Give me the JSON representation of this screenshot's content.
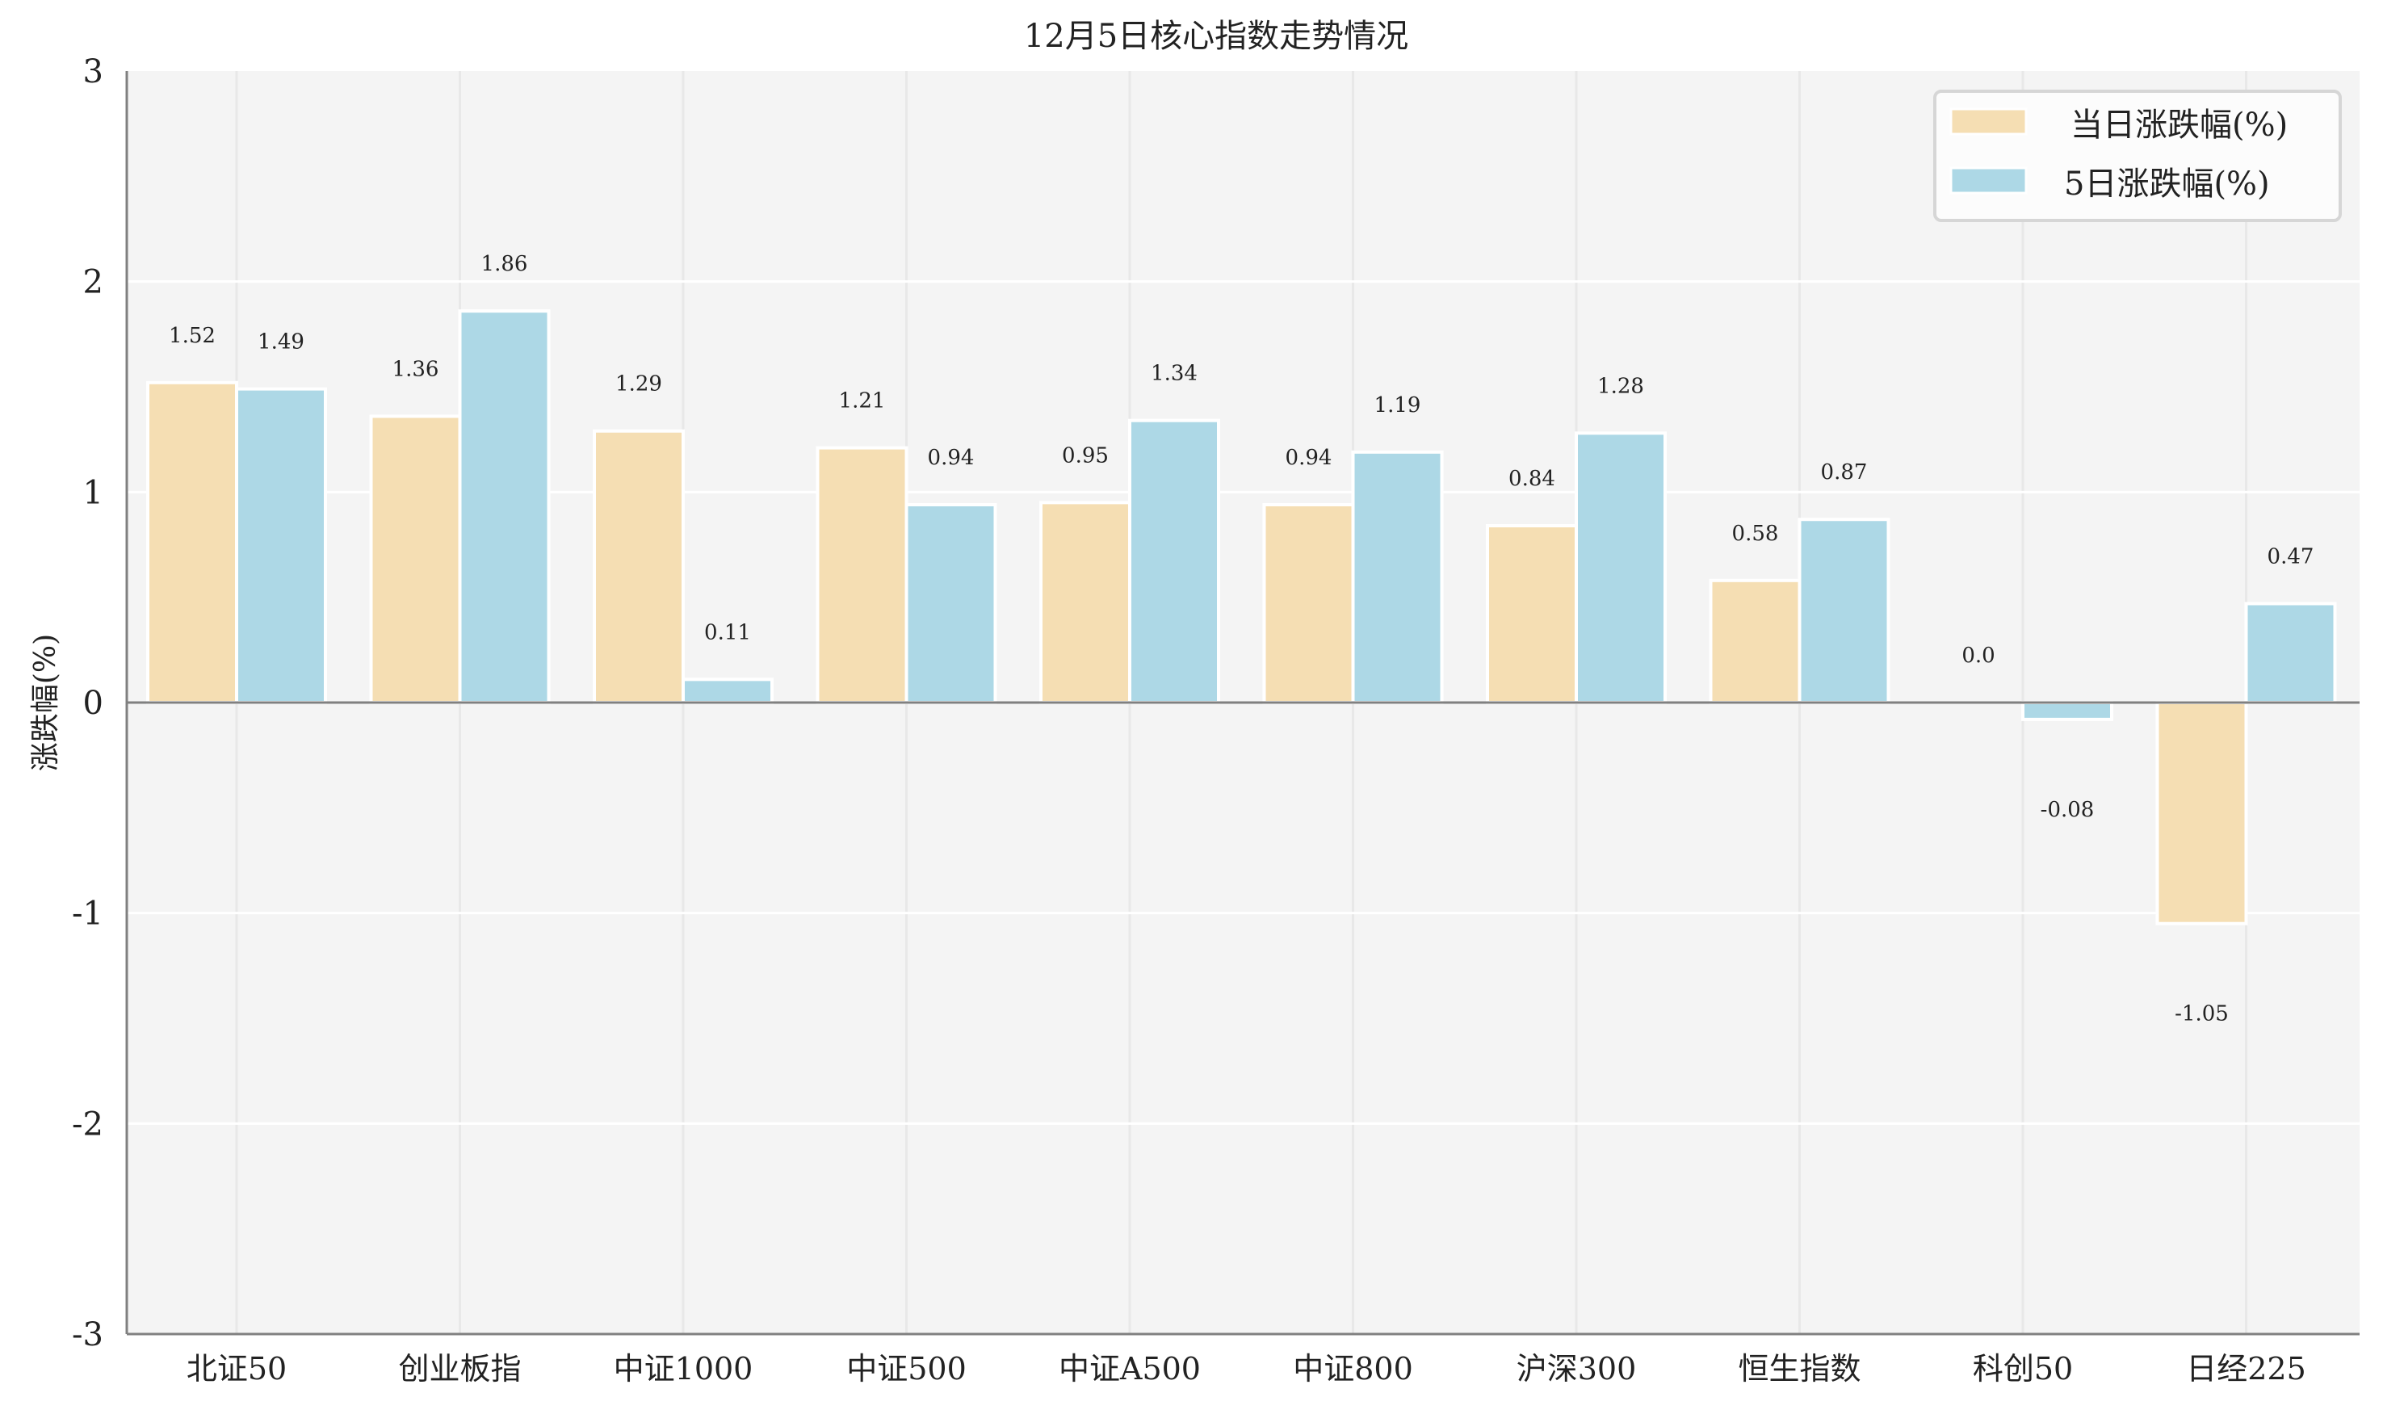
{
  "chart_data": {
    "type": "bar",
    "title": "12月5日核心指数走势情况",
    "xlabel": "",
    "ylabel": "涨跌幅(%)",
    "ylim": [
      -3,
      3
    ],
    "yticks": [
      3,
      2,
      1,
      0,
      -1,
      -2,
      -3
    ],
    "grid": true,
    "legend_position": "upper right",
    "categories": [
      "北证50",
      "创业板指",
      "中证1000",
      "中证500",
      "中证A500",
      "中证800",
      "沪深300",
      "恒生指数",
      "科创50",
      "日经225"
    ],
    "series": [
      {
        "name": "当日涨跌幅(%)",
        "color": "#F5DEB3",
        "values": [
          1.52,
          1.36,
          1.29,
          1.21,
          0.95,
          0.94,
          0.84,
          0.58,
          0.0,
          -1.05
        ],
        "labels": [
          "1.52",
          "1.36",
          "1.29",
          "1.21",
          "0.95",
          "0.94",
          "0.84",
          "0.58",
          "0.0",
          "-1.05"
        ]
      },
      {
        "name": "5日涨跌幅(%)",
        "color": "#ADD8E6",
        "values": [
          1.49,
          1.86,
          0.11,
          0.94,
          1.34,
          1.19,
          1.28,
          0.87,
          -0.08,
          0.47
        ],
        "labels": [
          "1.49",
          "1.86",
          "0.11",
          "0.94",
          "1.34",
          "1.19",
          "1.28",
          "0.87",
          "-0.08",
          "0.47"
        ]
      }
    ]
  },
  "colors": {
    "plot_background": "#F4F4F4",
    "grid": "#FFFFFF",
    "vertical_grid": "#E8E8E8",
    "axis": "#808080",
    "text": "#222222"
  }
}
